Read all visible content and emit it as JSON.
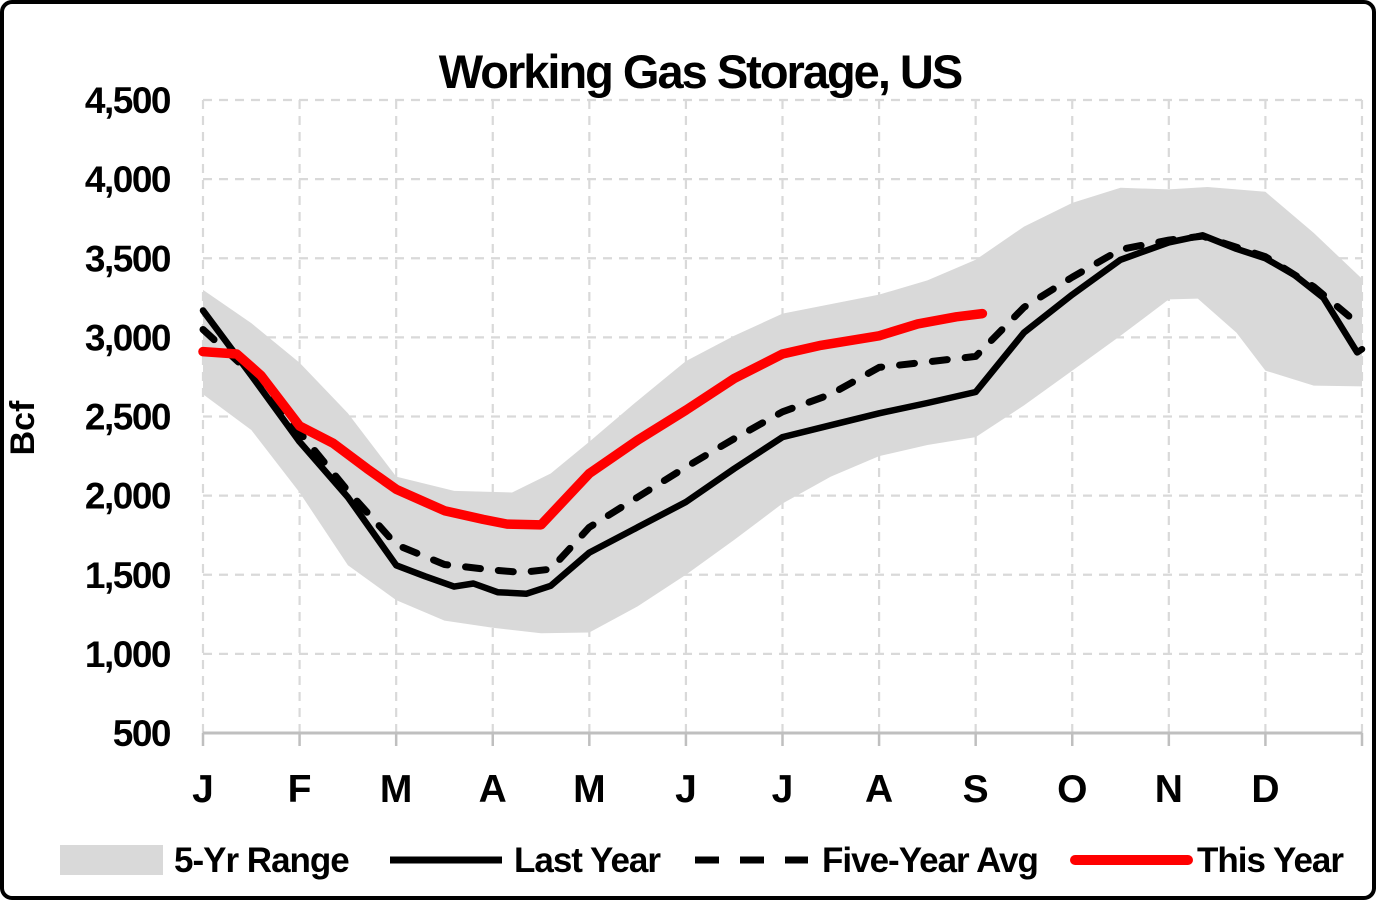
{
  "chart_data": {
    "type": "line",
    "title": "Working Gas Storage, US",
    "ylabel": "Bcf",
    "xlabel": "",
    "ylim": [
      500,
      4500
    ],
    "y_tick_step": 500,
    "grid": true,
    "legend_position": "bottom",
    "x_unit": "month index: 0 = start of January, 12 = end of December",
    "x_months": [
      "J",
      "F",
      "M",
      "A",
      "M",
      "J",
      "J",
      "A",
      "S",
      "O",
      "N",
      "D"
    ],
    "band": {
      "name": "5-Yr Range",
      "color": "#d9d9d9",
      "upper": [
        [
          0,
          3300
        ],
        [
          0.5,
          3090
        ],
        [
          1,
          2840
        ],
        [
          1.5,
          2520
        ],
        [
          2,
          2120
        ],
        [
          2.6,
          2030
        ],
        [
          3.2,
          2020
        ],
        [
          3.6,
          2140
        ],
        [
          4,
          2340
        ],
        [
          4.5,
          2600
        ],
        [
          5,
          2850
        ],
        [
          5.5,
          3010
        ],
        [
          6,
          3150
        ],
        [
          6.5,
          3210
        ],
        [
          7,
          3270
        ],
        [
          7.5,
          3360
        ],
        [
          8,
          3490
        ],
        [
          8.5,
          3700
        ],
        [
          9,
          3850
        ],
        [
          9.5,
          3945
        ],
        [
          10,
          3935
        ],
        [
          10.4,
          3950
        ],
        [
          10.7,
          3935
        ],
        [
          11,
          3920
        ],
        [
          11.5,
          3660
        ],
        [
          12,
          3370
        ]
      ],
      "lower": [
        [
          0,
          2640
        ],
        [
          0.5,
          2415
        ],
        [
          1,
          2020
        ],
        [
          1.5,
          1560
        ],
        [
          2,
          1340
        ],
        [
          2.5,
          1210
        ],
        [
          3,
          1165
        ],
        [
          3.5,
          1130
        ],
        [
          4,
          1135
        ],
        [
          4.5,
          1300
        ],
        [
          5,
          1500
        ],
        [
          5.5,
          1720
        ],
        [
          6,
          1950
        ],
        [
          6.5,
          2120
        ],
        [
          7,
          2250
        ],
        [
          7.5,
          2320
        ],
        [
          8,
          2370
        ],
        [
          8.5,
          2570
        ],
        [
          9,
          2790
        ],
        [
          9.5,
          3010
        ],
        [
          10,
          3240
        ],
        [
          10.3,
          3245
        ],
        [
          10.7,
          3030
        ],
        [
          11,
          2790
        ],
        [
          11.5,
          2695
        ],
        [
          12,
          2690
        ]
      ]
    },
    "series": [
      {
        "name": "Last Year",
        "color": "#000000",
        "style": "solid",
        "points": [
          [
            0,
            3170
          ],
          [
            0.5,
            2760
          ],
          [
            1,
            2340
          ],
          [
            1.5,
            1990
          ],
          [
            2,
            1560
          ],
          [
            2.3,
            1490
          ],
          [
            2.6,
            1425
          ],
          [
            2.8,
            1445
          ],
          [
            3.05,
            1390
          ],
          [
            3.35,
            1380
          ],
          [
            3.6,
            1430
          ],
          [
            4,
            1640
          ],
          [
            4.5,
            1800
          ],
          [
            5,
            1960
          ],
          [
            5.5,
            2170
          ],
          [
            6,
            2370
          ],
          [
            6.5,
            2445
          ],
          [
            7,
            2520
          ],
          [
            7.5,
            2585
          ],
          [
            8,
            2655
          ],
          [
            8.5,
            3030
          ],
          [
            9,
            3270
          ],
          [
            9.5,
            3490
          ],
          [
            10,
            3600
          ],
          [
            10.35,
            3645
          ],
          [
            10.7,
            3560
          ],
          [
            11,
            3500
          ],
          [
            11.3,
            3395
          ],
          [
            11.6,
            3250
          ],
          [
            11.95,
            2905
          ],
          [
            12,
            2925
          ]
        ]
      },
      {
        "name": "Five-Year Avg",
        "color": "#000000",
        "style": "dashed",
        "points": [
          [
            0,
            3050
          ],
          [
            0.5,
            2770
          ],
          [
            1,
            2400
          ],
          [
            1.5,
            2030
          ],
          [
            2,
            1690
          ],
          [
            2.5,
            1565
          ],
          [
            3,
            1530
          ],
          [
            3.3,
            1515
          ],
          [
            3.6,
            1535
          ],
          [
            4,
            1800
          ],
          [
            4.5,
            1990
          ],
          [
            5,
            2180
          ],
          [
            5.5,
            2360
          ],
          [
            6,
            2530
          ],
          [
            6.5,
            2640
          ],
          [
            7,
            2810
          ],
          [
            7.5,
            2845
          ],
          [
            8,
            2880
          ],
          [
            8.5,
            3190
          ],
          [
            9,
            3380
          ],
          [
            9.5,
            3555
          ],
          [
            10,
            3615
          ],
          [
            10.35,
            3640
          ],
          [
            10.7,
            3570
          ],
          [
            11,
            3510
          ],
          [
            11.5,
            3320
          ],
          [
            12,
            3065
          ]
        ]
      },
      {
        "name": "This Year",
        "color": "#ff0000",
        "style": "solid",
        "points": [
          [
            0,
            2910
          ],
          [
            0.35,
            2895
          ],
          [
            0.6,
            2760
          ],
          [
            1,
            2440
          ],
          [
            1.35,
            2330
          ],
          [
            1.7,
            2170
          ],
          [
            2,
            2040
          ],
          [
            2.5,
            1905
          ],
          [
            2.9,
            1850
          ],
          [
            3.15,
            1820
          ],
          [
            3.5,
            1815
          ],
          [
            4,
            2140
          ],
          [
            4.5,
            2350
          ],
          [
            5,
            2540
          ],
          [
            5.5,
            2740
          ],
          [
            6,
            2895
          ],
          [
            6.4,
            2950
          ],
          [
            7,
            3010
          ],
          [
            7.4,
            3085
          ],
          [
            7.8,
            3130
          ],
          [
            8.07,
            3150
          ]
        ]
      }
    ]
  },
  "y_axis": {
    "unit_label": "Bcf",
    "tick_labels": [
      "4,500",
      "4,000",
      "3,500",
      "3,000",
      "2,500",
      "2,000",
      "1,500",
      "1,000",
      "500"
    ],
    "tick_values": [
      4500,
      4000,
      3500,
      3000,
      2500,
      2000,
      1500,
      1000,
      500
    ]
  },
  "x_axis": {
    "labels": [
      "J",
      "F",
      "M",
      "A",
      "M",
      "J",
      "J",
      "A",
      "S",
      "O",
      "N",
      "D"
    ]
  },
  "legend": {
    "items": [
      {
        "label": "5-Yr Range",
        "swatch": "band",
        "color": "#d9d9d9"
      },
      {
        "label": "Last Year",
        "swatch": "solid",
        "color": "#000000"
      },
      {
        "label": "Five-Year Avg",
        "swatch": "dashed",
        "color": "#000000"
      },
      {
        "label": "This Year",
        "swatch": "solid-thick",
        "color": "#ff0000"
      }
    ]
  },
  "colors": {
    "band": "#d9d9d9",
    "gridline": "#d9d9d9",
    "axis": "#bfbfbf",
    "accent": "#ff0000",
    "text": "#000000",
    "frame": "#000000"
  }
}
